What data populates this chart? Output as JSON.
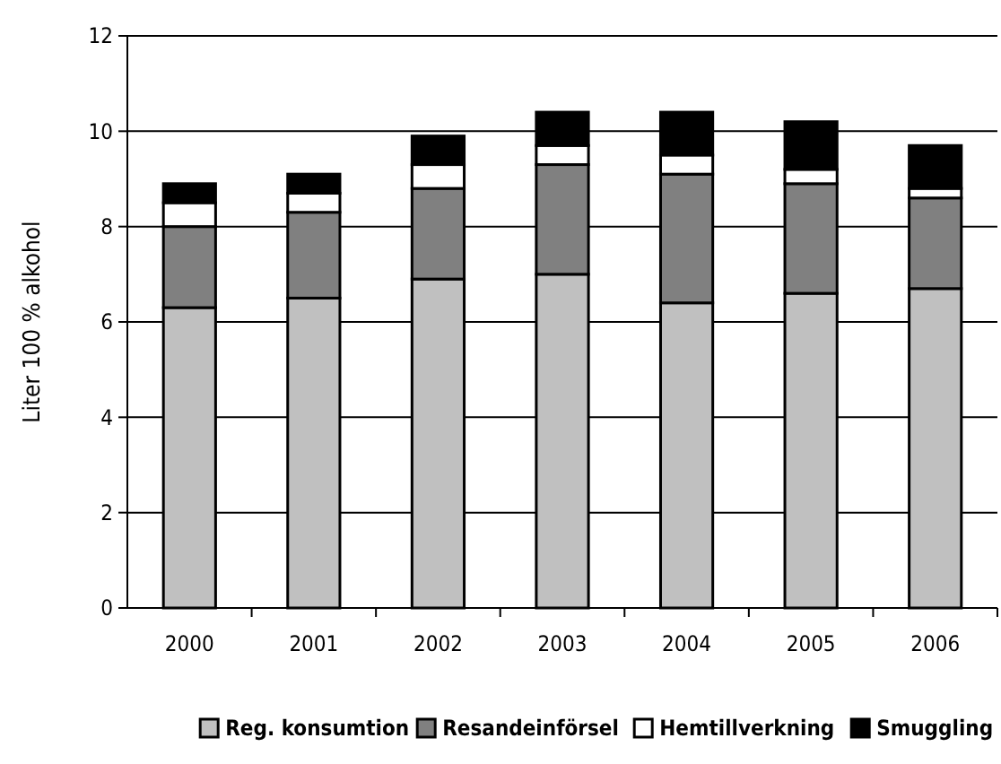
{
  "chart_data": {
    "type": "bar",
    "stacked": true,
    "ylabel": "Liter 100 % alkohol",
    "categories": [
      "2000",
      "2001",
      "2002",
      "2003",
      "2004",
      "2005",
      "2006"
    ],
    "series": [
      {
        "name": "Reg. konsumtion",
        "color": "#c0c0c0",
        "values": [
          6.3,
          6.5,
          6.9,
          7.0,
          6.4,
          6.6,
          6.7
        ]
      },
      {
        "name": "Resandeinförsel",
        "color": "#808080",
        "values": [
          1.7,
          1.8,
          1.9,
          2.3,
          2.7,
          2.3,
          1.9
        ]
      },
      {
        "name": "Hemtillverkning",
        "color": "#ffffff",
        "values": [
          0.5,
          0.4,
          0.5,
          0.4,
          0.4,
          0.3,
          0.2
        ]
      },
      {
        "name": "Smuggling",
        "color": "#000000",
        "values": [
          0.4,
          0.4,
          0.6,
          0.7,
          0.9,
          1.0,
          0.9
        ]
      }
    ],
    "ylim": [
      0,
      12
    ],
    "yticks": [
      0,
      2,
      4,
      6,
      8,
      10,
      12
    ],
    "grid": "y",
    "legend": "bottom"
  }
}
